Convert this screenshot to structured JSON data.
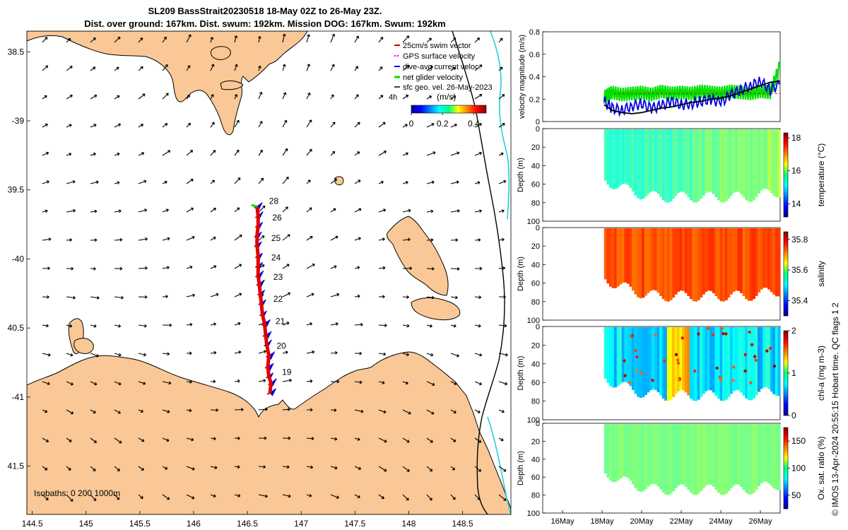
{
  "header": {
    "title_line1": "SL209 BassStrait20230518 18-May 02Z to 26-May 23Z.",
    "title_line2": "Dist. over ground: 167km. Dist. swum: 192km. Mission DOG: 167km. Swum: 192km"
  },
  "side_note": "© IMOS 13-Apr-2024 20:55:15 Hobart time. QC flags 1  2",
  "colors": {
    "land": "#f9c896",
    "track_red": "#e00000",
    "track_blue": "#0000e0",
    "green": "#00e000",
    "cyan": "#22d0e0"
  },
  "chart_data": [
    {
      "type": "map",
      "name": "track-map",
      "xlim": [
        144.45,
        148.95
      ],
      "ylim": [
        -41.85,
        -38.35
      ],
      "x_ticks": [
        144.5,
        145,
        145.5,
        146,
        146.5,
        147,
        147.5,
        148,
        148.5
      ],
      "x_tick_labels": [
        "144.5",
        "145",
        "145.5",
        "146",
        "146.5",
        "147",
        "147.5",
        "148",
        "148.5"
      ],
      "y_ticks": [
        -38.5,
        -39,
        -39.5,
        -40,
        -40.5,
        -41,
        -41.5
      ],
      "y_tick_labels": [
        "38.5",
        "-39",
        "39.5",
        "-40",
        "40.5",
        "-41",
        "41.5"
      ],
      "legend": {
        "position": "top-right",
        "entries": [
          "25cm/s swim vector",
          "GPS surface velocity",
          "dive-avg current veloc.",
          "net glider velocity",
          "sfc geo. vel. 26-May-2023"
        ],
        "interval_label": "4h"
      },
      "colorbar": {
        "label": "(m/s)",
        "ticks": [
          0,
          0.2,
          0.4
        ],
        "tick_labels": [
          "0",
          "0.2",
          "0.4"
        ],
        "range": [
          0,
          0.48
        ]
      },
      "isobaths_label": "Isobaths: 0   200  1000m",
      "track": [
        [
          146.71,
          -40.97
        ],
        [
          146.72,
          -40.9
        ],
        [
          146.7,
          -40.85
        ],
        [
          146.69,
          -40.78
        ],
        [
          146.7,
          -40.7
        ],
        [
          146.68,
          -40.62
        ],
        [
          146.67,
          -40.55
        ],
        [
          146.66,
          -40.47
        ],
        [
          146.64,
          -40.4
        ],
        [
          146.63,
          -40.32
        ],
        [
          146.62,
          -40.25
        ],
        [
          146.61,
          -40.18
        ],
        [
          146.6,
          -40.12
        ],
        [
          146.6,
          -40.05
        ],
        [
          146.6,
          -39.98
        ],
        [
          146.59,
          -39.9
        ],
        [
          146.59,
          -39.83
        ],
        [
          146.6,
          -39.76
        ],
        [
          146.6,
          -39.69
        ],
        [
          146.59,
          -39.62
        ]
      ],
      "day_labels": [
        {
          "label": "28",
          "lon": 146.61,
          "lat": -39.58
        },
        {
          "label": "26",
          "lon": 146.64,
          "lat": -39.7
        },
        {
          "label": "25",
          "lon": 146.63,
          "lat": -39.85
        },
        {
          "label": "24",
          "lon": 146.63,
          "lat": -39.99
        },
        {
          "label": "23",
          "lon": 146.65,
          "lat": -40.13
        },
        {
          "label": "22",
          "lon": 146.65,
          "lat": -40.29
        },
        {
          "label": "21",
          "lon": 146.67,
          "lat": -40.45
        },
        {
          "label": "20",
          "lon": 146.68,
          "lat": -40.63
        },
        {
          "label": "19",
          "lon": 146.73,
          "lat": -40.82
        }
      ]
    },
    {
      "type": "line",
      "name": "velocity-magnitude",
      "ylabel": "velocity magnitude (m/s)",
      "ylim": [
        0,
        0.8
      ],
      "y_ticks": [
        0,
        0.2,
        0.4,
        0.6,
        0.8
      ],
      "y_tick_labels": [
        "0",
        "0.2",
        "0.4",
        "0.6",
        "0.8"
      ],
      "series": [
        {
          "name": "net glider velocity",
          "color": "#00e000",
          "x": [
            18.1,
            18.5,
            19.0,
            19.5,
            20.0,
            20.5,
            21.0,
            21.5,
            22.0,
            22.5,
            23.0,
            23.5,
            24.0,
            24.5,
            25.0,
            25.5,
            26.0,
            26.5,
            27.0
          ],
          "y": [
            0.22,
            0.26,
            0.24,
            0.25,
            0.26,
            0.24,
            0.27,
            0.25,
            0.26,
            0.25,
            0.27,
            0.26,
            0.25,
            0.27,
            0.26,
            0.25,
            0.27,
            0.26,
            0.5
          ]
        },
        {
          "name": "dive-avg current veloc.",
          "color": "#0000e0",
          "x": [
            18.1,
            18.5,
            19.0,
            19.5,
            20.0,
            20.5,
            21.0,
            21.5,
            22.0,
            22.5,
            23.0,
            23.5,
            24.0,
            24.5,
            25.0,
            25.5,
            26.0,
            26.5,
            27.0
          ],
          "y": [
            0.18,
            0.12,
            0.1,
            0.14,
            0.16,
            0.12,
            0.14,
            0.18,
            0.15,
            0.16,
            0.18,
            0.2,
            0.17,
            0.24,
            0.28,
            0.32,
            0.36,
            0.28,
            0.34
          ]
        },
        {
          "name": "sfc geo. vel.",
          "color": "#000000",
          "x": [
            18.1,
            18.5,
            19.0,
            19.5,
            20.0,
            20.5,
            21.0,
            21.5,
            22.0,
            22.5,
            23.0,
            23.5,
            24.0,
            24.5,
            25.0,
            25.5,
            26.0,
            26.5,
            27.0
          ],
          "y": [
            0.15,
            0.1,
            0.08,
            0.07,
            0.08,
            0.1,
            0.12,
            0.13,
            0.15,
            0.17,
            0.18,
            0.2,
            0.21,
            0.23,
            0.26,
            0.29,
            0.32,
            0.35,
            0.36
          ]
        }
      ]
    },
    {
      "type": "heatmap",
      "name": "temperature",
      "ylabel": "Depth (m)",
      "ylim": [
        100,
        0
      ],
      "y_ticks": [
        0,
        20,
        40,
        60,
        80,
        100
      ],
      "colorbar_label": "temperature (°C)",
      "colorbar_ticks": [
        14,
        16,
        18
      ],
      "colorbar_range": [
        13.2,
        18.3
      ],
      "typical_value": 15.6,
      "x_start": 18.1,
      "x_end": 27.0
    },
    {
      "type": "heatmap",
      "name": "salinity",
      "ylabel": "Depth (m)",
      "ylim": [
        100,
        0
      ],
      "y_ticks": [
        0,
        20,
        40,
        60,
        80,
        100
      ],
      "colorbar_label": "salinity",
      "colorbar_ticks": [
        35.4,
        35.6,
        35.8
      ],
      "colorbar_range": [
        35.3,
        35.85
      ],
      "typical_value": 35.72,
      "x_start": 18.1,
      "x_end": 27.0
    },
    {
      "type": "heatmap",
      "name": "chl-a",
      "ylabel": "Depth (m)",
      "ylim": [
        100,
        0
      ],
      "y_ticks": [
        0,
        20,
        40,
        60,
        80,
        100
      ],
      "colorbar_label": "chl-a (mg m-3)",
      "colorbar_ticks": [
        0,
        1,
        2
      ],
      "colorbar_range": [
        0,
        2
      ],
      "typical_value": 0.8,
      "x_start": 18.1,
      "x_end": 27.0
    },
    {
      "type": "heatmap",
      "name": "oxygen-saturation",
      "ylabel": "Depth (m)",
      "ylim": [
        100,
        0
      ],
      "y_ticks": [
        0,
        20,
        40,
        60,
        80,
        100
      ],
      "colorbar_label": "Ox. sat. ratio (%)",
      "colorbar_ticks": [
        50,
        100,
        150
      ],
      "colorbar_range": [
        25,
        175
      ],
      "typical_value": 100,
      "x_start": 18.1,
      "x_end": 27.0,
      "x_ticks": [
        16,
        18,
        20,
        22,
        24,
        26
      ],
      "x_tick_labels": [
        "16May",
        "18May",
        "20May",
        "22May",
        "24May",
        "26May"
      ],
      "xlim": [
        15,
        27
      ]
    }
  ]
}
